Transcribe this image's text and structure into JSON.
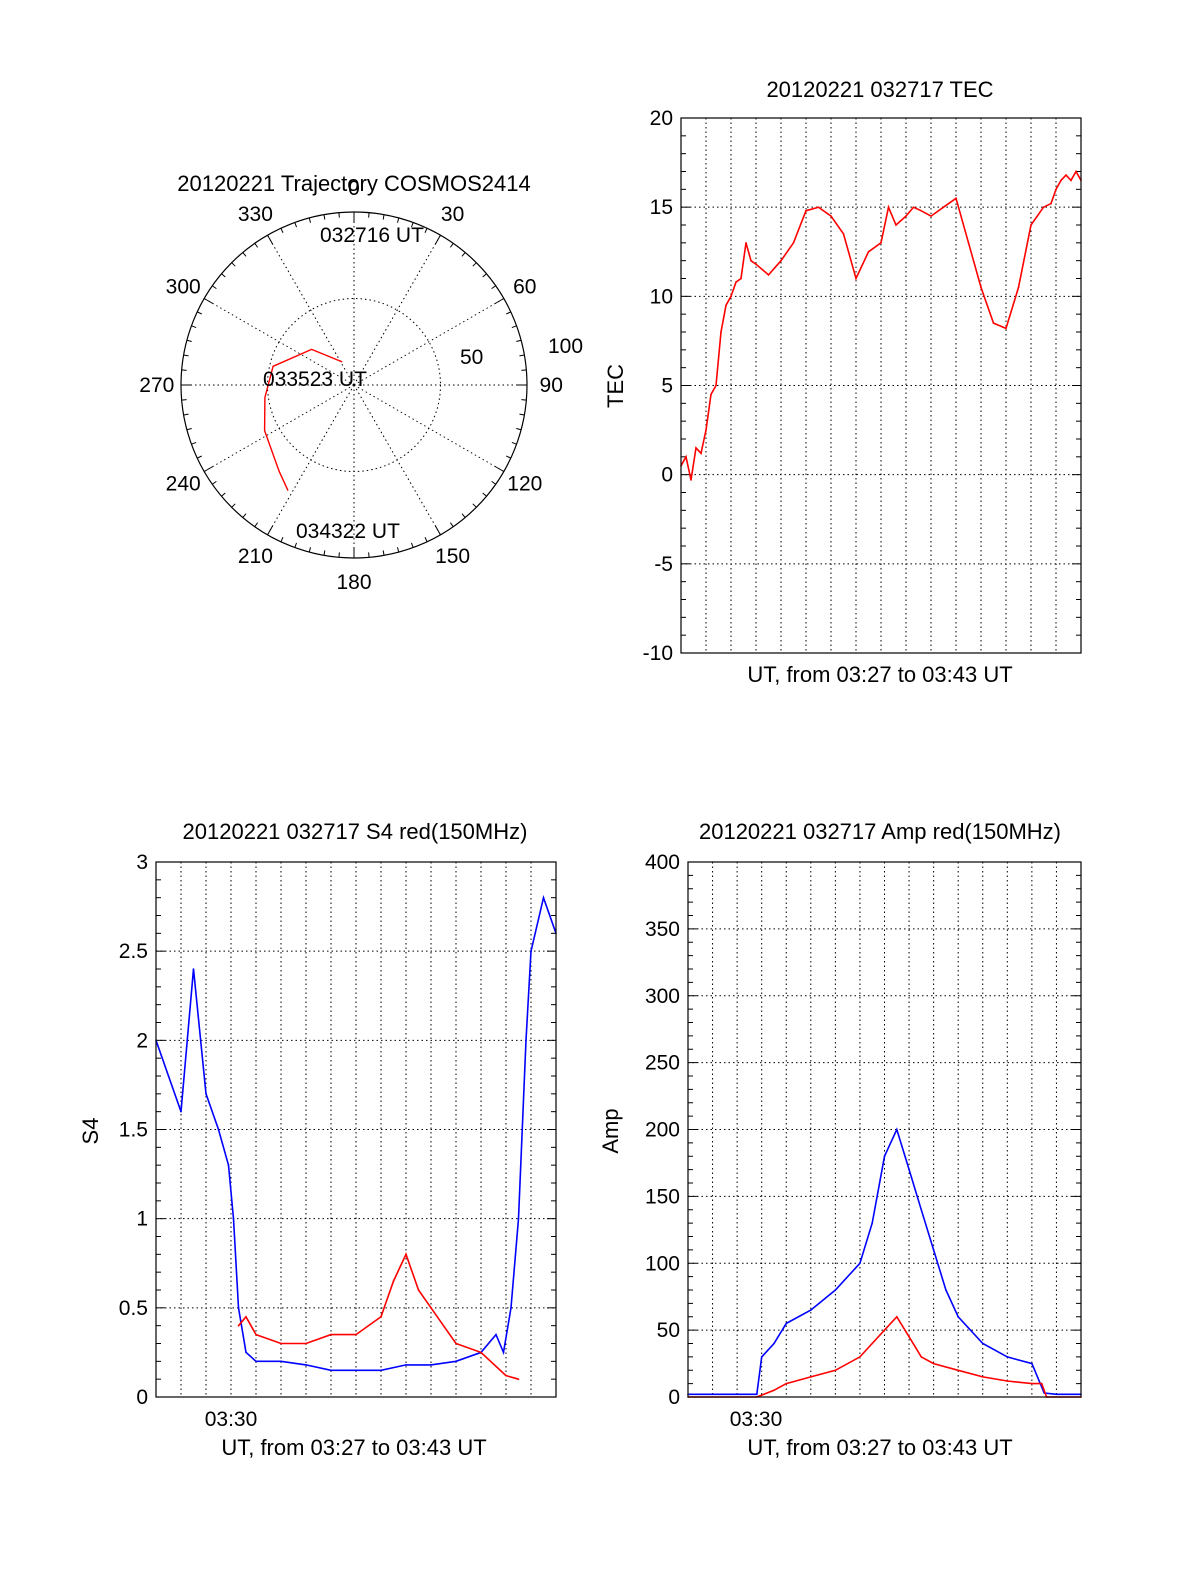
{
  "colors": {
    "red": "#ff0000",
    "blue": "#0000ff",
    "black": "#000000"
  },
  "chart_data": [
    {
      "id": "trajectory",
      "type": "polar",
      "title": "20120221 Trajectory COSMOS2414",
      "azimuth_labels": [
        "0",
        "30",
        "60",
        "90",
        "120",
        "150",
        "180",
        "210",
        "240",
        "270",
        "300",
        "330"
      ],
      "radial_labels": [
        "50",
        "100"
      ],
      "series": [
        {
          "color": "red",
          "points": [
            [
              333,
              15
            ],
            [
              310,
              32
            ],
            [
              283,
              48
            ],
            [
              262,
              52
            ],
            [
              243,
              58
            ],
            [
              221,
              66
            ],
            [
              212,
              72
            ]
          ]
        }
      ],
      "annotations": [
        "032716 UT",
        "033523 UT",
        "034322 UT"
      ]
    },
    {
      "id": "tec",
      "type": "line",
      "title": "20120221 032717 TEC",
      "xlabel": "UT, from 03:27 to 03:43 UT",
      "ylabel": "TEC",
      "xlim": [
        0,
        16
      ],
      "ylim": [
        -10,
        20
      ],
      "yticks": [
        "20",
        "15",
        "10",
        "5",
        "0",
        "-5",
        "-10"
      ],
      "grid": true,
      "series": [
        {
          "color": "red",
          "x": [
            0,
            0.2,
            0.4,
            0.6,
            0.8,
            1.0,
            1.2,
            1.4,
            1.6,
            1.8,
            2.0,
            2.2,
            2.4,
            2.6,
            2.8,
            3.0,
            3.5,
            4.0,
            4.5,
            5.0,
            5.5,
            6.0,
            6.5,
            7.0,
            7.5,
            8.0,
            8.3,
            8.6,
            9.0,
            9.3,
            9.6,
            10.0,
            10.5,
            11.0,
            11.5,
            12.0,
            12.5,
            13.0,
            13.5,
            14.0,
            14.5,
            14.8,
            15.0,
            15.2,
            15.4,
            15.6,
            15.8,
            16.0
          ],
          "y": [
            0.5,
            1.0,
            -0.3,
            1.5,
            1.2,
            2.5,
            4.5,
            5.0,
            8.0,
            9.5,
            10.0,
            10.8,
            11.0,
            13.0,
            12.0,
            11.8,
            11.2,
            12.0,
            13.0,
            14.8,
            15.0,
            14.5,
            13.5,
            11.0,
            12.5,
            13.0,
            15.0,
            14.0,
            14.5,
            15.0,
            14.8,
            14.5,
            15.0,
            15.5,
            13.0,
            10.5,
            8.5,
            8.2,
            10.5,
            14.0,
            15.0,
            15.2,
            16.0,
            16.5,
            16.8,
            16.5,
            17.0,
            16.5
          ]
        }
      ]
    },
    {
      "id": "s4",
      "type": "line",
      "title": "20120221 032717 S4 red(150MHz)",
      "xlabel": "UT, from 03:27 to 03:43 UT",
      "ylabel": "S4",
      "xlim": [
        0,
        16
      ],
      "ylim": [
        0,
        3
      ],
      "yticks": [
        "3",
        "2.5",
        "2",
        "1.5",
        "1",
        "0.5",
        "0"
      ],
      "xticks": [
        "03:30"
      ],
      "grid": true,
      "series": [
        {
          "color": "blue",
          "x": [
            0,
            0.5,
            1.0,
            1.5,
            2.0,
            2.5,
            2.9,
            3.1,
            3.3,
            3.6,
            4.0,
            5.0,
            6.0,
            7.0,
            8.0,
            9.0,
            10.0,
            11.0,
            12.0,
            13.0,
            13.6,
            13.9,
            14.2,
            14.5,
            14.8,
            15.0,
            15.5,
            16.0
          ],
          "y": [
            2.0,
            1.8,
            1.6,
            2.4,
            1.7,
            1.5,
            1.3,
            1.0,
            0.5,
            0.25,
            0.2,
            0.2,
            0.18,
            0.15,
            0.15,
            0.15,
            0.18,
            0.18,
            0.2,
            0.25,
            0.35,
            0.25,
            0.5,
            1.0,
            2.0,
            2.5,
            2.8,
            2.6
          ]
        },
        {
          "color": "red",
          "x": [
            3.3,
            3.6,
            4.0,
            5.0,
            6.0,
            7.0,
            8.0,
            9.0,
            9.5,
            10.0,
            10.5,
            11.0,
            11.5,
            12.0,
            13.0,
            14.0,
            14.5
          ],
          "y": [
            0.4,
            0.45,
            0.35,
            0.3,
            0.3,
            0.35,
            0.35,
            0.45,
            0.65,
            0.8,
            0.6,
            0.5,
            0.4,
            0.3,
            0.25,
            0.12,
            0.1
          ]
        }
      ]
    },
    {
      "id": "amp",
      "type": "line",
      "title": "20120221 032717 Amp red(150MHz)",
      "xlabel": "UT, from 03:27 to 03:43 UT",
      "ylabel": "Amp",
      "xlim": [
        0,
        16
      ],
      "ylim": [
        0,
        400
      ],
      "yticks": [
        "400",
        "350",
        "300",
        "250",
        "200",
        "150",
        "100",
        "50",
        "0"
      ],
      "xticks": [
        "03:30"
      ],
      "grid": true,
      "series": [
        {
          "color": "blue",
          "x": [
            0,
            1,
            2,
            2.8,
            3.0,
            3.5,
            4.0,
            5.0,
            6.0,
            7.0,
            7.5,
            8.0,
            8.5,
            9.0,
            9.5,
            10.0,
            10.5,
            11.0,
            12.0,
            13.0,
            14.0,
            14.5,
            15.0,
            16.0
          ],
          "y": [
            2,
            2,
            2,
            2,
            30,
            40,
            55,
            65,
            80,
            100,
            130,
            180,
            200,
            170,
            140,
            110,
            80,
            60,
            40,
            30,
            25,
            3,
            2,
            2
          ]
        },
        {
          "color": "red",
          "x": [
            0,
            2.8,
            3.5,
            4.0,
            5.0,
            6.0,
            7.0,
            7.5,
            8.0,
            8.5,
            9.0,
            9.5,
            10.0,
            11.0,
            12.0,
            13.0,
            14.0,
            14.4,
            14.6,
            16.0
          ],
          "y": [
            0,
            0,
            5,
            10,
            15,
            20,
            30,
            40,
            50,
            60,
            45,
            30,
            25,
            20,
            15,
            12,
            10,
            10,
            0,
            0
          ]
        }
      ]
    }
  ]
}
